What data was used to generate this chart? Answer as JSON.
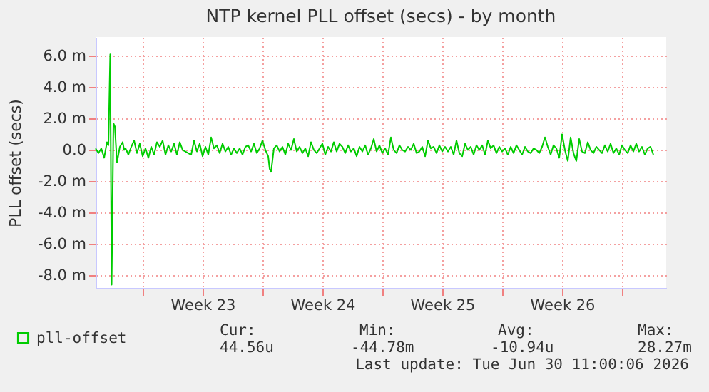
{
  "chart_data": {
    "type": "line",
    "title": "NTP kernel PLL offset (secs) - by month",
    "ylabel": "PLL offset (secs)",
    "xlim": [
      "2026-05-29T06:00",
      "2026-07-01T14:00"
    ],
    "xticks": [
      {
        "value": "2026-06-01T00:00",
        "label": null
      },
      {
        "value": "2026-06-04T12:00",
        "label": "Week 23"
      },
      {
        "value": "2026-06-08T00:00",
        "label": null
      },
      {
        "value": "2026-06-11T12:00",
        "label": "Week 24"
      },
      {
        "value": "2026-06-15T00:00",
        "label": null
      },
      {
        "value": "2026-06-18T12:00",
        "label": "Week 25"
      },
      {
        "value": "2026-06-22T00:00",
        "label": null
      },
      {
        "value": "2026-06-25T12:00",
        "label": "Week 26"
      },
      {
        "value": "2026-06-29T00:00",
        "label": null
      }
    ],
    "ylim": [
      -8.8,
      7.2
    ],
    "yticks": [
      {
        "value": -8,
        "label": "-8.0 m"
      },
      {
        "value": -6,
        "label": "-6.0 m"
      },
      {
        "value": -4,
        "label": "-4.0 m"
      },
      {
        "value": -2,
        "label": "-2.0 m"
      },
      {
        "value": 0,
        "label": "0.0"
      },
      {
        "value": 2,
        "label": "2.0 m"
      },
      {
        "value": 4,
        "label": "4.0 m"
      },
      {
        "value": 6,
        "label": "6.0 m"
      }
    ],
    "grid": true,
    "legend": "bottom left",
    "annotations": [
      "Cur:",
      "Min:",
      "Avg:",
      "Max:",
      "44.56u",
      "-44.78m",
      "-10.94u",
      "28.27m",
      "Last update: Tue Jun 30 11:00:06 2026"
    ],
    "series": [
      {
        "name": "pll-offset",
        "color": "#00cc00",
        "x": [
          "2026-05-29T06:00",
          "2026-05-29T10:00",
          "2026-05-29T14:00",
          "2026-05-29T18:00",
          "2026-05-29T22:00",
          "2026-05-30T00:00",
          "2026-05-30T02:30",
          "2026-05-30T04:30",
          "2026-05-30T07:00",
          "2026-05-30T09:00",
          "2026-05-30T12:00",
          "2026-05-30T16:00",
          "2026-05-30T20:00",
          "2026-05-30T22:00",
          "2026-05-31T00:00",
          "2026-05-31T04:00",
          "2026-05-31T08:00",
          "2026-05-31T12:00",
          "2026-05-31T16:00",
          "2026-05-31T20:00",
          "2026-06-01T00:00",
          "2026-06-01T04:00",
          "2026-06-01T08:00",
          "2026-06-01T12:00",
          "2026-06-01T16:00",
          "2026-06-01T20:00",
          "2026-06-02T00:00",
          "2026-06-02T04:00",
          "2026-06-02T08:00",
          "2026-06-02T12:00",
          "2026-06-02T16:00",
          "2026-06-02T20:00",
          "2026-06-03T00:00",
          "2026-06-03T04:00",
          "2026-06-03T08:00",
          "2026-06-03T12:00",
          "2026-06-03T16:00",
          "2026-06-03T20:00",
          "2026-06-04T00:00",
          "2026-06-04T04:00",
          "2026-06-04T08:00",
          "2026-06-04T12:00",
          "2026-06-04T16:00",
          "2026-06-04T20:00",
          "2026-06-05T00:00",
          "2026-06-05T04:00",
          "2026-06-05T08:00",
          "2026-06-05T12:00",
          "2026-06-05T16:00",
          "2026-06-05T20:00",
          "2026-06-06T00:00",
          "2026-06-06T04:00",
          "2026-06-06T08:00",
          "2026-06-06T12:00",
          "2026-06-06T16:00",
          "2026-06-06T20:00",
          "2026-06-07T00:00",
          "2026-06-07T04:00",
          "2026-06-07T08:00",
          "2026-06-07T12:00",
          "2026-06-07T16:00",
          "2026-06-07T20:00",
          "2026-06-08T00:00",
          "2026-06-08T04:00",
          "2026-06-08T08:00",
          "2026-06-08T10:00",
          "2026-06-08T12:00",
          "2026-06-08T16:00",
          "2026-06-08T20:00",
          "2026-06-09T00:00",
          "2026-06-09T04:00",
          "2026-06-09T08:00",
          "2026-06-09T12:00",
          "2026-06-09T16:00",
          "2026-06-09T20:00",
          "2026-06-10T00:00",
          "2026-06-10T04:00",
          "2026-06-10T08:00",
          "2026-06-10T12:00",
          "2026-06-10T16:00",
          "2026-06-10T20:00",
          "2026-06-11T00:00",
          "2026-06-11T04:00",
          "2026-06-11T08:00",
          "2026-06-11T12:00",
          "2026-06-11T16:00",
          "2026-06-11T20:00",
          "2026-06-12T00:00",
          "2026-06-12T04:00",
          "2026-06-12T08:00",
          "2026-06-12T12:00",
          "2026-06-12T16:00",
          "2026-06-12T20:00",
          "2026-06-13T00:00",
          "2026-06-13T04:00",
          "2026-06-13T08:00",
          "2026-06-13T12:00",
          "2026-06-13T16:00",
          "2026-06-13T20:00",
          "2026-06-14T00:00",
          "2026-06-14T04:00",
          "2026-06-14T08:00",
          "2026-06-14T12:00",
          "2026-06-14T16:00",
          "2026-06-14T20:00",
          "2026-06-15T00:00",
          "2026-06-15T04:00",
          "2026-06-15T08:00",
          "2026-06-15T12:00",
          "2026-06-15T16:00",
          "2026-06-15T20:00",
          "2026-06-16T00:00",
          "2026-06-16T04:00",
          "2026-06-16T08:00",
          "2026-06-16T12:00",
          "2026-06-16T16:00",
          "2026-06-16T20:00",
          "2026-06-17T00:00",
          "2026-06-17T04:00",
          "2026-06-17T08:00",
          "2026-06-17T12:00",
          "2026-06-17T16:00",
          "2026-06-17T20:00",
          "2026-06-18T00:00",
          "2026-06-18T04:00",
          "2026-06-18T08:00",
          "2026-06-18T12:00",
          "2026-06-18T16:00",
          "2026-06-18T20:00",
          "2026-06-19T00:00",
          "2026-06-19T04:00",
          "2026-06-19T08:00",
          "2026-06-19T12:00",
          "2026-06-19T16:00",
          "2026-06-19T20:00",
          "2026-06-20T00:00",
          "2026-06-20T04:00",
          "2026-06-20T08:00",
          "2026-06-20T12:00",
          "2026-06-20T16:00",
          "2026-06-20T20:00",
          "2026-06-21T00:00",
          "2026-06-21T04:00",
          "2026-06-21T08:00",
          "2026-06-21T12:00",
          "2026-06-21T16:00",
          "2026-06-21T20:00",
          "2026-06-22T00:00",
          "2026-06-22T04:00",
          "2026-06-22T08:00",
          "2026-06-22T12:00",
          "2026-06-22T16:00",
          "2026-06-22T20:00",
          "2026-06-23T00:00",
          "2026-06-23T04:00",
          "2026-06-23T08:00",
          "2026-06-23T12:00",
          "2026-06-23T16:00",
          "2026-06-23T20:00",
          "2026-06-24T00:00",
          "2026-06-24T04:00",
          "2026-06-24T08:00",
          "2026-06-24T12:00",
          "2026-06-24T16:00",
          "2026-06-24T20:00",
          "2026-06-25T00:00",
          "2026-06-25T04:00",
          "2026-06-25T08:00",
          "2026-06-25T12:00",
          "2026-06-25T16:00",
          "2026-06-25T20:00",
          "2026-06-26T00:00",
          "2026-06-26T04:00",
          "2026-06-26T08:00",
          "2026-06-26T12:00",
          "2026-06-26T16:00",
          "2026-06-26T20:00",
          "2026-06-27T00:00",
          "2026-06-27T04:00",
          "2026-06-27T08:00",
          "2026-06-27T12:00",
          "2026-06-27T16:00",
          "2026-06-27T20:00",
          "2026-06-28T00:00",
          "2026-06-28T04:00",
          "2026-06-28T08:00",
          "2026-06-28T12:00",
          "2026-06-28T16:00",
          "2026-06-28T20:00",
          "2026-06-29T00:00",
          "2026-06-29T04:00",
          "2026-06-29T08:00",
          "2026-06-29T12:00",
          "2026-06-29T16:00",
          "2026-06-29T20:00",
          "2026-06-30T00:00",
          "2026-06-30T04:00",
          "2026-06-30T08:00",
          "2026-06-30T12:00",
          "2026-06-30T16:00",
          "2026-06-30T20:00"
        ],
        "values": [
          0.1,
          -0.2,
          0.1,
          -0.5,
          0.5,
          0.3,
          6.1,
          -8.6,
          1.7,
          1.5,
          -0.8,
          0.2,
          0.5,
          0.0,
          0.1,
          -0.3,
          0.2,
          0.6,
          -0.2,
          0.4,
          -0.4,
          0.1,
          -0.5,
          0.2,
          -0.3,
          0.5,
          0.2,
          0.6,
          -0.3,
          0.3,
          -0.1,
          0.4,
          -0.3,
          0.5,
          0.0,
          -0.1,
          -0.2,
          -0.3,
          0.6,
          -0.1,
          0.4,
          -0.4,
          0.2,
          -0.3,
          0.8,
          0.1,
          0.3,
          -0.2,
          0.4,
          -0.1,
          0.2,
          -0.3,
          0.1,
          -0.2,
          0.1,
          -0.3,
          0.2,
          0.3,
          -0.1,
          0.4,
          -0.2,
          0.1,
          0.6,
          0.0,
          -0.4,
          -1.2,
          -1.4,
          0.1,
          0.3,
          -0.1,
          0.2,
          -0.3,
          0.4,
          0.0,
          0.7,
          -0.1,
          0.2,
          -0.2,
          0.1,
          -0.4,
          0.5,
          0.0,
          -0.2,
          0.1,
          0.4,
          -0.3,
          0.2,
          -0.1,
          0.5,
          -0.1,
          0.4,
          0.2,
          -0.2,
          0.3,
          -0.1,
          0.1,
          -0.4,
          0.2,
          -0.1,
          0.3,
          -0.3,
          0.1,
          0.7,
          -0.1,
          0.3,
          -0.2,
          0.1,
          -0.3,
          0.8,
          0.0,
          -0.2,
          0.3,
          0.0,
          -0.1,
          0.2,
          0.0,
          0.4,
          -0.2,
          -0.1,
          0.2,
          -0.4,
          0.6,
          0.1,
          0.2,
          -0.2,
          0.3,
          -0.1,
          0.2,
          -0.1,
          0.2,
          -0.3,
          0.6,
          -0.2,
          -0.4,
          0.4,
          0.0,
          0.2,
          -0.3,
          0.3,
          0.0,
          0.3,
          -0.3,
          0.6,
          0.1,
          0.3,
          -0.2,
          0.2,
          -0.1,
          0.1,
          -0.3,
          0.2,
          -0.2,
          0.3,
          0.0,
          -0.3,
          0.2,
          -0.1,
          -0.2,
          0.1,
          0.0,
          -0.2,
          0.2,
          0.8,
          0.2,
          -0.3,
          0.3,
          0.1,
          -0.5,
          1.0,
          0.0,
          -0.7,
          0.8,
          -0.2,
          -0.7,
          0.7,
          -0.1,
          -0.2,
          0.5,
          0.0,
          -0.2,
          0.2,
          0.0,
          -0.2,
          0.3,
          -0.1,
          0.4,
          -0.2,
          0.1,
          -0.3,
          0.3,
          0.0,
          -0.2,
          0.3,
          -0.1,
          0.4,
          -0.1,
          0.2,
          -0.3,
          0.1,
          0.2,
          -0.3
        ]
      }
    ]
  }
}
